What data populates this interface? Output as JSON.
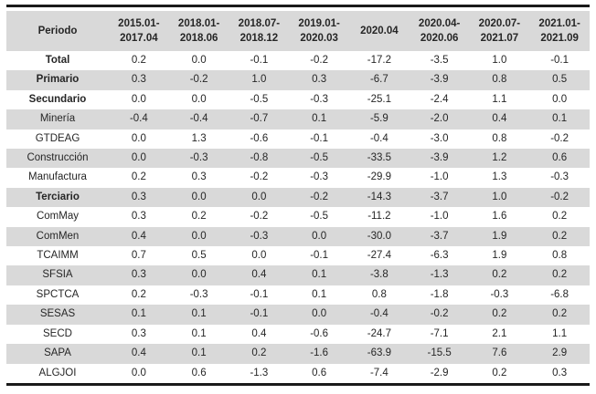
{
  "chart_data": {
    "type": "table",
    "header": {
      "period_label": "Periodo",
      "columns": [
        "2015.01-\n2017.04",
        "2018.01-\n2018.06",
        "2018.07-\n2018.12",
        "2019.01-\n2020.03",
        "2020.04",
        "2020.04-\n2020.06",
        "2020.07-\n2021.07",
        "2021.01-\n2021.09"
      ]
    },
    "rows": [
      {
        "label": "Total",
        "bold": true,
        "values": [
          "0.2",
          "0.0",
          "-0.1",
          "-0.2",
          "-17.2",
          "-3.5",
          "1.0",
          "-0.1"
        ]
      },
      {
        "label": "Primario",
        "bold": true,
        "values": [
          "0.3",
          "-0.2",
          "1.0",
          "0.3",
          "-6.7",
          "-3.9",
          "0.8",
          "0.5"
        ]
      },
      {
        "label": "Secundario",
        "bold": true,
        "values": [
          "0.0",
          "0.0",
          "-0.5",
          "-0.3",
          "-25.1",
          "-2.4",
          "1.1",
          "0.0"
        ]
      },
      {
        "label": "Minería",
        "bold": false,
        "values": [
          "-0.4",
          "-0.4",
          "-0.7",
          "0.1",
          "-5.9",
          "-2.0",
          "0.4",
          "0.1"
        ]
      },
      {
        "label": "GTDEAG",
        "bold": false,
        "values": [
          "0.0",
          "1.3",
          "-0.6",
          "-0.1",
          "-0.4",
          "-3.0",
          "0.8",
          "-0.2"
        ]
      },
      {
        "label": "Construcción",
        "bold": false,
        "values": [
          "0.0",
          "-0.3",
          "-0.8",
          "-0.5",
          "-33.5",
          "-3.9",
          "1.2",
          "0.6"
        ]
      },
      {
        "label": "Manufactura",
        "bold": false,
        "values": [
          "0.2",
          "0.3",
          "-0.2",
          "-0.3",
          "-29.9",
          "-1.0",
          "1.3",
          "-0.3"
        ]
      },
      {
        "label": "Terciario",
        "bold": true,
        "values": [
          "0.3",
          "0.0",
          "0.0",
          "-0.2",
          "-14.3",
          "-3.7",
          "1.0",
          "-0.2"
        ]
      },
      {
        "label": "ComMay",
        "bold": false,
        "values": [
          "0.3",
          "0.2",
          "-0.2",
          "-0.5",
          "-11.2",
          "-1.0",
          "1.6",
          "0.2"
        ]
      },
      {
        "label": "ComMen",
        "bold": false,
        "values": [
          "0.4",
          "0.0",
          "-0.3",
          "0.0",
          "-30.0",
          "-3.7",
          "1.9",
          "0.2"
        ]
      },
      {
        "label": "TCAIMM",
        "bold": false,
        "values": [
          "0.7",
          "0.5",
          "0.0",
          "-0.1",
          "-27.4",
          "-6.3",
          "1.9",
          "0.8"
        ]
      },
      {
        "label": "SFSIA",
        "bold": false,
        "values": [
          "0.3",
          "0.0",
          "0.4",
          "0.1",
          "-3.8",
          "-1.3",
          "0.2",
          "0.2"
        ]
      },
      {
        "label": "SPCTCA",
        "bold": false,
        "values": [
          "0.2",
          "-0.3",
          "-0.1",
          "0.1",
          "0.8",
          "-1.8",
          "-0.3",
          "-6.8"
        ]
      },
      {
        "label": "SESAS",
        "bold": false,
        "values": [
          "0.1",
          "0.1",
          "-0.1",
          "0.0",
          "-0.4",
          "-0.2",
          "0.2",
          "0.2"
        ]
      },
      {
        "label": "SECD",
        "bold": false,
        "values": [
          "0.3",
          "0.1",
          "0.4",
          "-0.6",
          "-24.7",
          "-7.1",
          "2.1",
          "1.1"
        ]
      },
      {
        "label": "SAPA",
        "bold": false,
        "values": [
          "0.4",
          "0.1",
          "0.2",
          "-1.6",
          "-63.9",
          "-15.5",
          "7.6",
          "2.9"
        ]
      },
      {
        "label": "ALGJOI",
        "bold": false,
        "values": [
          "0.0",
          "0.6",
          "-1.3",
          "0.6",
          "-7.4",
          "-2.9",
          "0.2",
          "0.3"
        ]
      }
    ],
    "layout": {
      "striped": true,
      "header_bg": "#d9d9d9",
      "stripe_bg": "#d9d9d9",
      "rule_color": "#1a1a1a",
      "text_color": "#262626"
    }
  }
}
